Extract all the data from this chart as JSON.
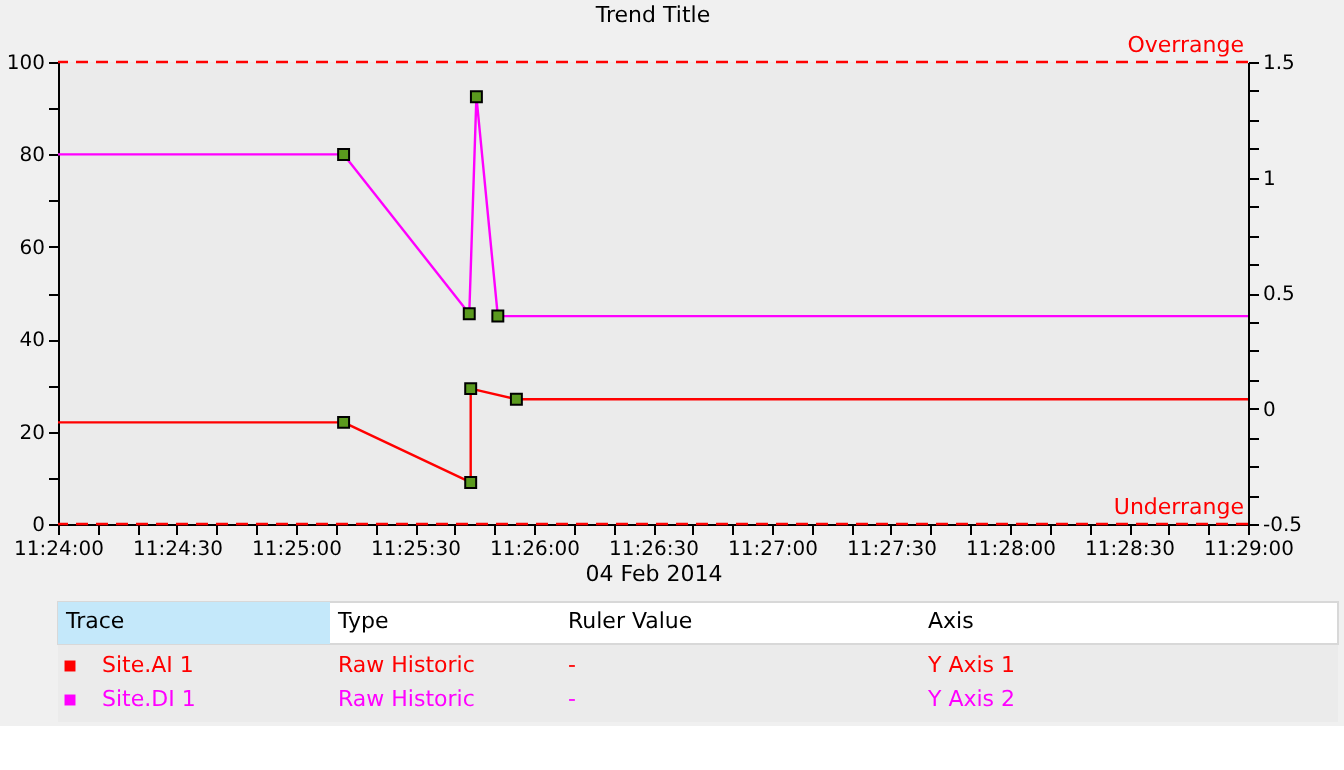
{
  "chart_data": {
    "type": "line",
    "title": "Trend Title",
    "xlabel": "04 Feb 2014",
    "xlim": [
      11.4,
      11.483333
    ],
    "xticks": [
      {
        "value": 11.4,
        "label": "11:24:00"
      },
      {
        "value": 11.402778,
        "label": null
      },
      {
        "value": 11.405556,
        "label": null
      },
      {
        "value": 11.408333,
        "label": "11:24:30"
      },
      {
        "value": 11.411111,
        "label": null
      },
      {
        "value": 11.413889,
        "label": null
      },
      {
        "value": 11.416667,
        "label": "11:25:00"
      },
      {
        "value": 11.419444,
        "label": null
      },
      {
        "value": 11.422222,
        "label": null
      },
      {
        "value": 11.425,
        "label": "11:25:30"
      },
      {
        "value": 11.427778,
        "label": null
      },
      {
        "value": 11.430556,
        "label": null
      },
      {
        "value": 11.433333,
        "label": "11:26:00"
      },
      {
        "value": 11.436111,
        "label": null
      },
      {
        "value": 11.438889,
        "label": null
      },
      {
        "value": 11.441667,
        "label": "11:26:30"
      },
      {
        "value": 11.444444,
        "label": null
      },
      {
        "value": 11.447222,
        "label": null
      },
      {
        "value": 11.45,
        "label": "11:27:00"
      },
      {
        "value": 11.452778,
        "label": null
      },
      {
        "value": 11.455556,
        "label": null
      },
      {
        "value": 11.458333,
        "label": "11:27:30"
      },
      {
        "value": 11.461111,
        "label": null
      },
      {
        "value": 11.463889,
        "label": null
      },
      {
        "value": 11.466667,
        "label": "11:28:00"
      },
      {
        "value": 11.469444,
        "label": null
      },
      {
        "value": 11.472222,
        "label": null
      },
      {
        "value": 11.475,
        "label": "11:28:30"
      },
      {
        "value": 11.477778,
        "label": null
      },
      {
        "value": 11.480556,
        "label": null
      },
      {
        "value": 11.483333,
        "label": "11:29:00"
      }
    ],
    "ylim": [
      0,
      100
    ],
    "yticks": [
      0,
      {
        "value": 10,
        "label": null
      },
      20,
      {
        "value": 30,
        "label": null
      },
      40,
      {
        "value": 50,
        "label": null
      },
      60,
      {
        "value": 70,
        "label": null
      },
      80,
      {
        "value": 90,
        "label": null
      },
      100
    ],
    "y2lim": [
      -0.5,
      1.5
    ],
    "y2ticks": [
      -0.5,
      {
        "value": -0.375,
        "label": null
      },
      {
        "value": -0.25,
        "label": null
      },
      {
        "value": -0.125,
        "label": null
      },
      0,
      {
        "value": 0.125,
        "label": null
      },
      {
        "value": 0.25,
        "label": null
      },
      {
        "value": 0.375,
        "label": null
      },
      0.5,
      {
        "value": 0.625,
        "label": null
      },
      {
        "value": 0.75,
        "label": null
      },
      {
        "value": 0.875,
        "label": null
      },
      1,
      {
        "value": 1.125,
        "label": null
      },
      {
        "value": 1.25,
        "label": null
      },
      {
        "value": 1.375,
        "label": null
      },
      1.5
    ],
    "series": [
      {
        "name": "Site.AI 1",
        "color": "#ff0000",
        "x": [
          11.4,
          11.42,
          11.4289,
          11.4289,
          11.4321,
          11.483333
        ],
        "values": [
          22,
          22,
          9,
          29.3,
          27,
          27
        ]
      },
      {
        "name": "Site.DI 1",
        "color": "#ff00ff",
        "axis": "y2",
        "x": [
          11.4,
          11.42,
          11.4288,
          11.4293,
          11.4308,
          11.483333
        ],
        "values": [
          1.1,
          1.1,
          0.41,
          1.35,
          0.4,
          0.4
        ]
      }
    ],
    "ref_lines": [
      {
        "axis": "y",
        "value": 100,
        "label": "Overrange",
        "color": "#ff0000",
        "line_style": "dashed"
      },
      {
        "axis": "y",
        "value": 0,
        "label": "Underrange",
        "color": "#ff0000",
        "line_style": "dashed"
      }
    ],
    "annotations": [
      "Trace",
      "Type",
      "Ruler Value",
      "Axis",
      "Raw Historic",
      "-",
      "Y Axis 1",
      "Raw Historic",
      "-",
      "Y Axis 2"
    ],
    "marker": "square",
    "grid": false,
    "legend": "bottom",
    "line_style": "solid"
  }
}
